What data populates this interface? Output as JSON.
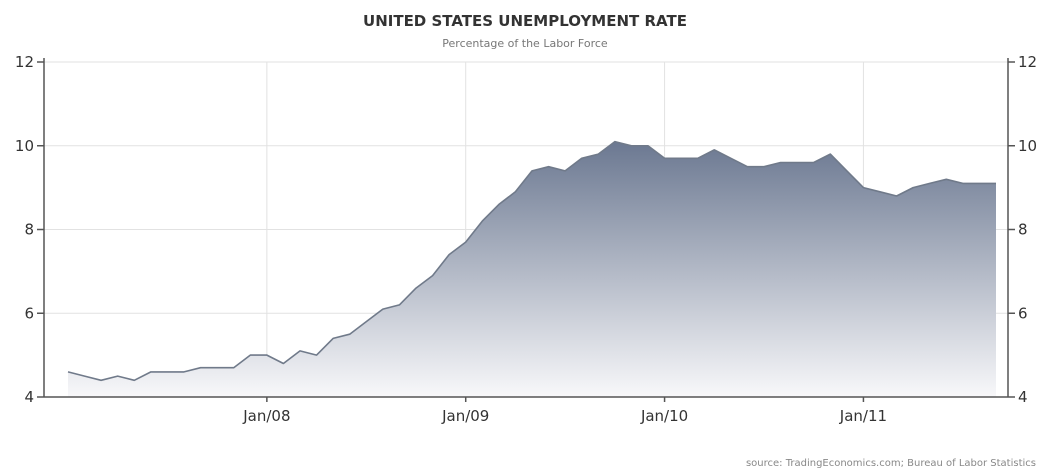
{
  "chart_data": {
    "type": "area",
    "title": "UNITED STATES UNEMPLOYMENT RATE",
    "subtitle": "Percentage of the Labor Force",
    "source": "source: TradingEconomics.com; Bureau of Labor Statistics",
    "xlabel": "",
    "ylabel": "",
    "x_tick_labels": [
      "Jan/08",
      "Jan/09",
      "Jan/10",
      "Jan/11"
    ],
    "y_ticks": [
      4,
      6,
      8,
      10,
      12
    ],
    "ylim": [
      4,
      12
    ],
    "x_range": [
      "2007-01",
      "2011-09"
    ],
    "grid": true,
    "legend": "none",
    "fill_gradient": [
      "#6b7891",
      "#f8f8fa"
    ],
    "line_color": "#707a8a",
    "series": [
      {
        "x": [
          "2007-01",
          "2007-02",
          "2007-03",
          "2007-04",
          "2007-05",
          "2007-06",
          "2007-07",
          "2007-08",
          "2007-09",
          "2007-10",
          "2007-11",
          "2007-12",
          "2008-01",
          "2008-02",
          "2008-03",
          "2008-04",
          "2008-05",
          "2008-06",
          "2008-07",
          "2008-08",
          "2008-09",
          "2008-10",
          "2008-11",
          "2008-12",
          "2009-01",
          "2009-02",
          "2009-03",
          "2009-04",
          "2009-05",
          "2009-06",
          "2009-07",
          "2009-08",
          "2009-09",
          "2009-10",
          "2009-11",
          "2009-12",
          "2010-01",
          "2010-02",
          "2010-03",
          "2010-04",
          "2010-05",
          "2010-06",
          "2010-07",
          "2010-08",
          "2010-09",
          "2010-10",
          "2010-11",
          "2010-12",
          "2011-01",
          "2011-02",
          "2011-03",
          "2011-04",
          "2011-05",
          "2011-06",
          "2011-07",
          "2011-08",
          "2011-09"
        ],
        "values": [
          4.6,
          4.5,
          4.4,
          4.5,
          4.4,
          4.6,
          4.6,
          4.6,
          4.7,
          4.7,
          4.7,
          5.0,
          5.0,
          4.8,
          5.1,
          5.0,
          5.4,
          5.5,
          5.8,
          6.1,
          6.2,
          6.6,
          6.9,
          7.4,
          7.7,
          8.2,
          8.6,
          8.9,
          9.4,
          9.5,
          9.4,
          9.7,
          9.8,
          10.1,
          10.0,
          10.0,
          9.7,
          9.7,
          9.7,
          9.9,
          9.7,
          9.5,
          9.5,
          9.6,
          9.6,
          9.6,
          9.8,
          9.4,
          9.0,
          8.9,
          8.8,
          9.0,
          9.1,
          9.2,
          9.1,
          9.1,
          9.1
        ]
      }
    ]
  }
}
